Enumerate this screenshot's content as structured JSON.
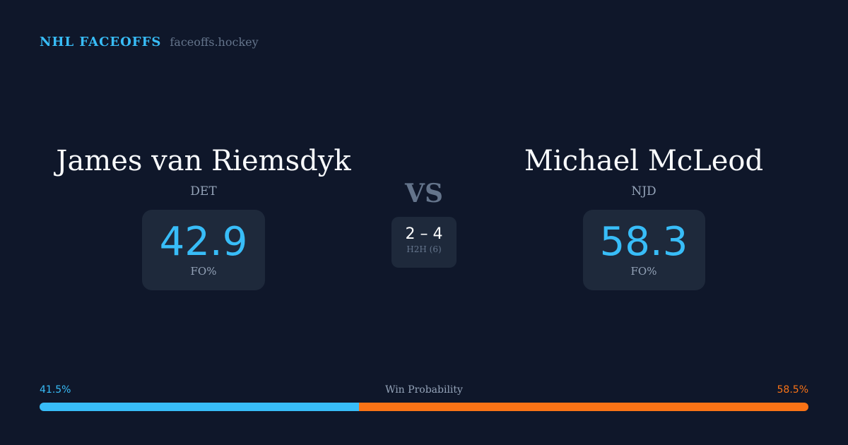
{
  "brand": {
    "title": "NHL FACEOFFS",
    "url": "faceoffs.hockey"
  },
  "player1": {
    "name": "James van Riemsdyk",
    "team": "DET",
    "fo_pct": "42.9",
    "fo_label": "FO%"
  },
  "player2": {
    "name": "Michael McLeod",
    "team": "NJD",
    "fo_pct": "58.3",
    "fo_label": "FO%"
  },
  "vs": "VS",
  "h2h": {
    "score": "2 – 4",
    "label": "H2H (6)"
  },
  "win_probability": {
    "label": "Win Probability",
    "p1": "41.5%",
    "p2": "58.5%",
    "p1_value": 41.5,
    "colors": {
      "p1": "#38bdf8",
      "p2": "#f97316"
    }
  }
}
